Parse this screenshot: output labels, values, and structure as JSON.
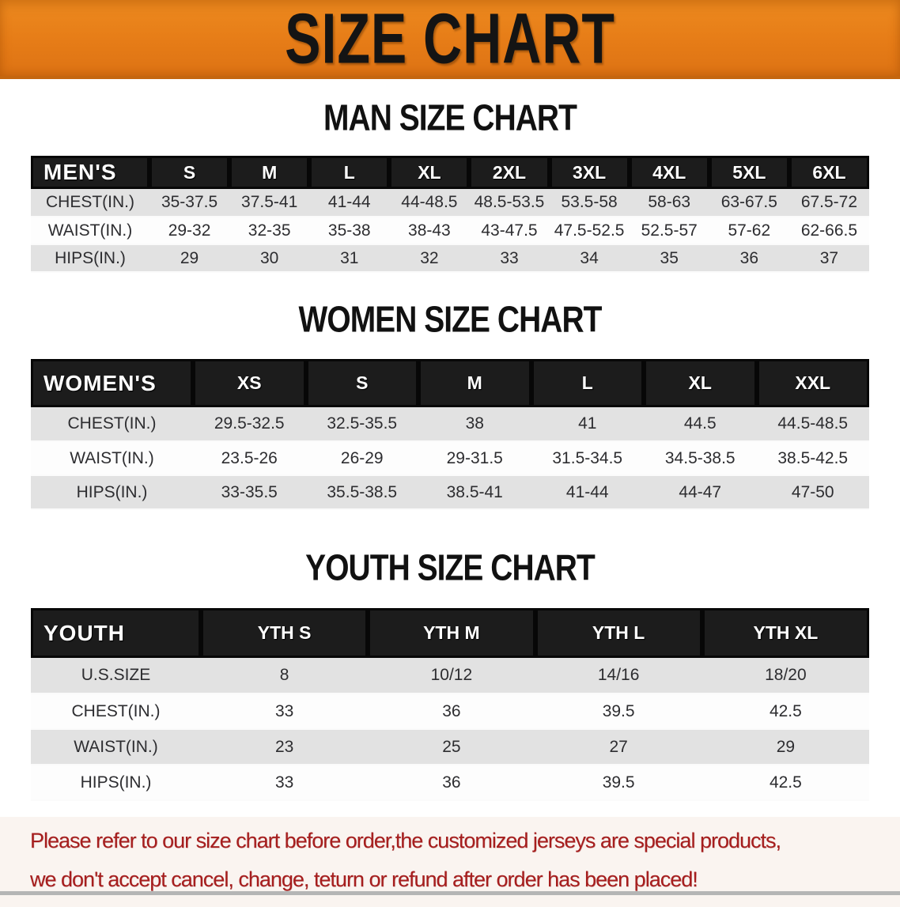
{
  "banner": {
    "title": "SIZE CHART",
    "bg_color": "#e67c17",
    "text_color": "#141414"
  },
  "sections": [
    {
      "id": "men",
      "title": "MAN SIZE CHART",
      "header_label": "MEN'S",
      "columns": [
        "S",
        "M",
        "L",
        "XL",
        "2XL",
        "3XL",
        "4XL",
        "5XL",
        "6XL"
      ],
      "rows": [
        {
          "label": "CHEST(IN.)",
          "values": [
            "35-37.5",
            "37.5-41",
            "41-44",
            "44-48.5",
            "48.5-53.5",
            "53.5-58",
            "58-63",
            "63-67.5",
            "67.5-72"
          ]
        },
        {
          "label": "WAIST(IN.)",
          "values": [
            "29-32",
            "32-35",
            "35-38",
            "38-43",
            "43-47.5",
            "47.5-52.5",
            "52.5-57",
            "57-62",
            "62-66.5"
          ]
        },
        {
          "label": "HIPS(IN.)",
          "values": [
            "29",
            "30",
            "31",
            "32",
            "33",
            "34",
            "35",
            "36",
            "37"
          ]
        }
      ]
    },
    {
      "id": "women",
      "title": "WOMEN SIZE CHART",
      "header_label": "WOMEN'S",
      "columns": [
        "XS",
        "S",
        "M",
        "L",
        "XL",
        "XXL"
      ],
      "rows": [
        {
          "label": "CHEST(IN.)",
          "values": [
            "29.5-32.5",
            "32.5-35.5",
            "38",
            "41",
            "44.5",
            "44.5-48.5"
          ]
        },
        {
          "label": "WAIST(IN.)",
          "values": [
            "23.5-26",
            "26-29",
            "29-31.5",
            "31.5-34.5",
            "34.5-38.5",
            "38.5-42.5"
          ]
        },
        {
          "label": "HIPS(IN.)",
          "values": [
            "33-35.5",
            "35.5-38.5",
            "38.5-41",
            "41-44",
            "44-47",
            "47-50"
          ]
        }
      ]
    },
    {
      "id": "youth",
      "title": "YOUTH SIZE CHART",
      "header_label": "YOUTH",
      "columns": [
        "YTH S",
        "YTH M",
        "YTH L",
        "YTH XL"
      ],
      "rows": [
        {
          "label": "U.S.SIZE",
          "values": [
            "8",
            "10/12",
            "14/16",
            "18/20"
          ]
        },
        {
          "label": "CHEST(IN.)",
          "values": [
            "33",
            "36",
            "39.5",
            "42.5"
          ]
        },
        {
          "label": "WAIST(IN.)",
          "values": [
            "23",
            "25",
            "27",
            "29"
          ]
        },
        {
          "label": "HIPS(IN.)",
          "values": [
            "33",
            "36",
            "39.5",
            "42.5"
          ]
        }
      ]
    }
  ],
  "disclaimer": {
    "line1": "Please refer to our size chart before order,the customized jerseys are special products,",
    "line2": "we don't accept cancel, change, teturn or refund after order has been placed!",
    "text_color": "#a61e1e"
  }
}
